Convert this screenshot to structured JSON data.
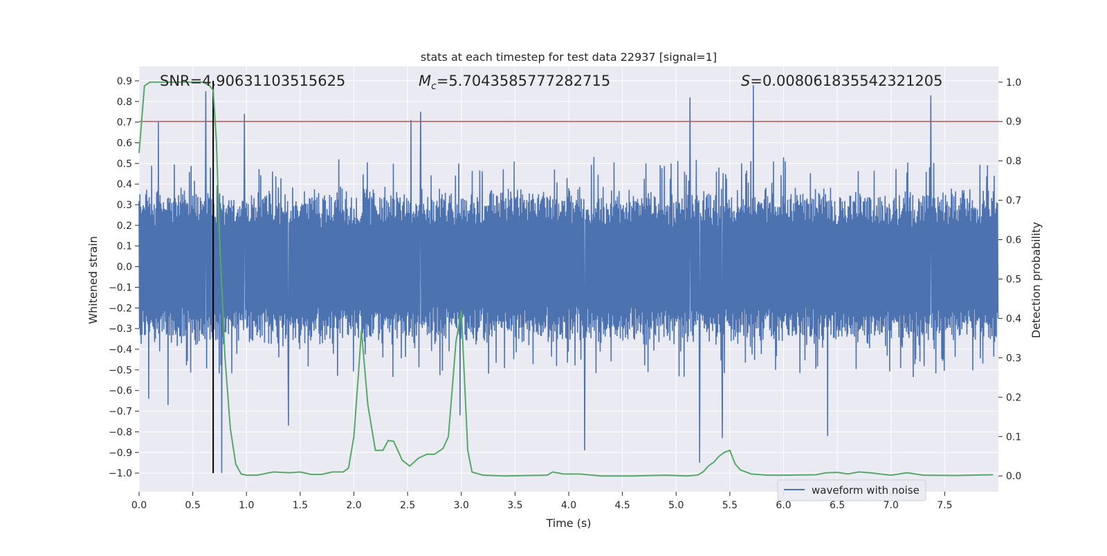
{
  "chart_data": {
    "type": "line",
    "title": "stats at each timestep for test data 22937 [signal=1]",
    "xlabel": "Time (s)",
    "ylabel": "Whitened strain",
    "y2label": "Detection probability",
    "xlim": [
      0.0,
      8.0
    ],
    "ylim": [
      -1.09,
      0.97
    ],
    "y2lim": [
      -0.04,
      1.04
    ],
    "x_ticks": [
      0.0,
      0.5,
      1.0,
      1.5,
      2.0,
      2.5,
      3.0,
      3.5,
      4.0,
      4.5,
      5.0,
      5.5,
      6.0,
      6.5,
      7.0,
      7.5
    ],
    "x_tick_labels": [
      "0.0",
      "0.5",
      "1.0",
      "1.5",
      "2.0",
      "2.5",
      "3.0",
      "3.5",
      "4.0",
      "4.5",
      "5.0",
      "5.5",
      "6.0",
      "6.5",
      "7.0",
      "7.5"
    ],
    "y_ticks": [
      -1.0,
      -0.9,
      -0.8,
      -0.7,
      -0.6,
      -0.5,
      -0.4,
      -0.3,
      -0.2,
      -0.1,
      0.0,
      0.1,
      0.2,
      0.3,
      0.4,
      0.5,
      0.6,
      0.7,
      0.8,
      0.9
    ],
    "y_tick_labels": [
      "−1.0",
      "−0.9",
      "−0.8",
      "−0.7",
      "−0.6",
      "−0.5",
      "−0.4",
      "−0.3",
      "−0.2",
      "−0.1",
      "0.0",
      "0.1",
      "0.2",
      "0.3",
      "0.4",
      "0.5",
      "0.6",
      "0.7",
      "0.8",
      "0.9"
    ],
    "y2_ticks": [
      0.0,
      0.1,
      0.2,
      0.3,
      0.4,
      0.5,
      0.6,
      0.7,
      0.8,
      0.9,
      1.0
    ],
    "y2_tick_labels": [
      "0.0",
      "0.1",
      "0.2",
      "0.3",
      "0.4",
      "0.5",
      "0.6",
      "0.7",
      "0.8",
      "0.9",
      "1.0"
    ],
    "grid": true,
    "legend": {
      "placement": "lower-right",
      "entries": [
        "waveform with noise"
      ]
    },
    "annotations": {
      "snr": "SNR=4.90631103515625",
      "mc_prefix": "M",
      "mc_sub": "c",
      "mc_value": "=5.7043585777282715",
      "s_prefix": "S",
      "s_value": "=0.008061835542321205"
    },
    "colors": {
      "waveform": "#4c72b0",
      "probability": "#55a868",
      "threshold": "#c44e52",
      "marker": "#000000",
      "background": "#eaeaf2",
      "grid": "#ffffff"
    },
    "series": [
      {
        "name": "waveform with noise",
        "axis": "left",
        "style": "dense-oscillation",
        "sample_count": 2048,
        "duration_s": 8.0,
        "typical_envelope": [
          -0.3,
          0.32
        ],
        "peaks": [
          {
            "x": 0.18,
            "y": 0.7
          },
          {
            "x": 0.62,
            "y": 0.85
          },
          {
            "x": 0.98,
            "y": 0.74
          },
          {
            "x": 2.62,
            "y": 0.75
          },
          {
            "x": 2.53,
            "y": 0.71
          },
          {
            "x": 5.13,
            "y": 0.82
          },
          {
            "x": 5.72,
            "y": 0.88
          },
          {
            "x": 7.37,
            "y": 0.83
          },
          {
            "x": 0.77,
            "y": -1.0
          },
          {
            "x": 1.39,
            "y": -0.77
          },
          {
            "x": 2.99,
            "y": -0.72
          },
          {
            "x": 4.15,
            "y": -0.89
          },
          {
            "x": 5.22,
            "y": -0.95
          },
          {
            "x": 5.43,
            "y": -0.83
          },
          {
            "x": 6.41,
            "y": -0.82
          },
          {
            "x": 0.27,
            "y": -0.67
          },
          {
            "x": 0.09,
            "y": -0.64
          }
        ]
      },
      {
        "name": "detection probability",
        "axis": "right",
        "x": [
          0.0,
          0.05,
          0.1,
          0.15,
          0.2,
          0.3,
          0.4,
          0.5,
          0.6,
          0.66,
          0.69,
          0.72,
          0.75,
          0.8,
          0.85,
          0.9,
          0.95,
          1.0,
          1.1,
          1.25,
          1.4,
          1.5,
          1.6,
          1.7,
          1.8,
          1.9,
          1.95,
          2.0,
          2.04,
          2.07,
          2.13,
          2.2,
          2.27,
          2.32,
          2.37,
          2.45,
          2.52,
          2.6,
          2.68,
          2.75,
          2.83,
          2.88,
          2.95,
          3.0,
          3.06,
          3.1,
          3.2,
          3.4,
          3.8,
          3.85,
          3.95,
          4.1,
          4.3,
          4.6,
          4.9,
          5.1,
          5.2,
          5.25,
          5.3,
          5.35,
          5.4,
          5.45,
          5.5,
          5.55,
          5.6,
          5.7,
          5.85,
          6.0,
          6.3,
          6.4,
          6.5,
          6.6,
          6.7,
          6.8,
          7.0,
          7.15,
          7.3,
          7.6,
          7.95
        ],
        "values": [
          0.82,
          0.99,
          1.0,
          1.0,
          1.0,
          1.0,
          1.0,
          1.0,
          1.0,
          0.99,
          0.98,
          0.85,
          0.6,
          0.3,
          0.12,
          0.03,
          0.005,
          0.002,
          0.002,
          0.01,
          0.008,
          0.01,
          0.004,
          0.004,
          0.01,
          0.01,
          0.02,
          0.1,
          0.25,
          0.37,
          0.18,
          0.065,
          0.065,
          0.09,
          0.088,
          0.04,
          0.025,
          0.045,
          0.055,
          0.055,
          0.07,
          0.1,
          0.34,
          0.42,
          0.065,
          0.01,
          0.002,
          0.0,
          0.002,
          0.01,
          0.005,
          0.005,
          0.0,
          0.0,
          0.002,
          0.0,
          0.002,
          0.01,
          0.025,
          0.035,
          0.05,
          0.06,
          0.065,
          0.03,
          0.015,
          0.005,
          0.002,
          0.002,
          0.003,
          0.008,
          0.009,
          0.005,
          0.01,
          0.008,
          0.002,
          0.008,
          0.002,
          0.001,
          0.003
        ]
      }
    ],
    "threshold_line": {
      "axis": "right",
      "value": 0.9
    },
    "marker_line": {
      "x": 0.69,
      "y_from": -1.0,
      "y_to": 0.9
    }
  }
}
